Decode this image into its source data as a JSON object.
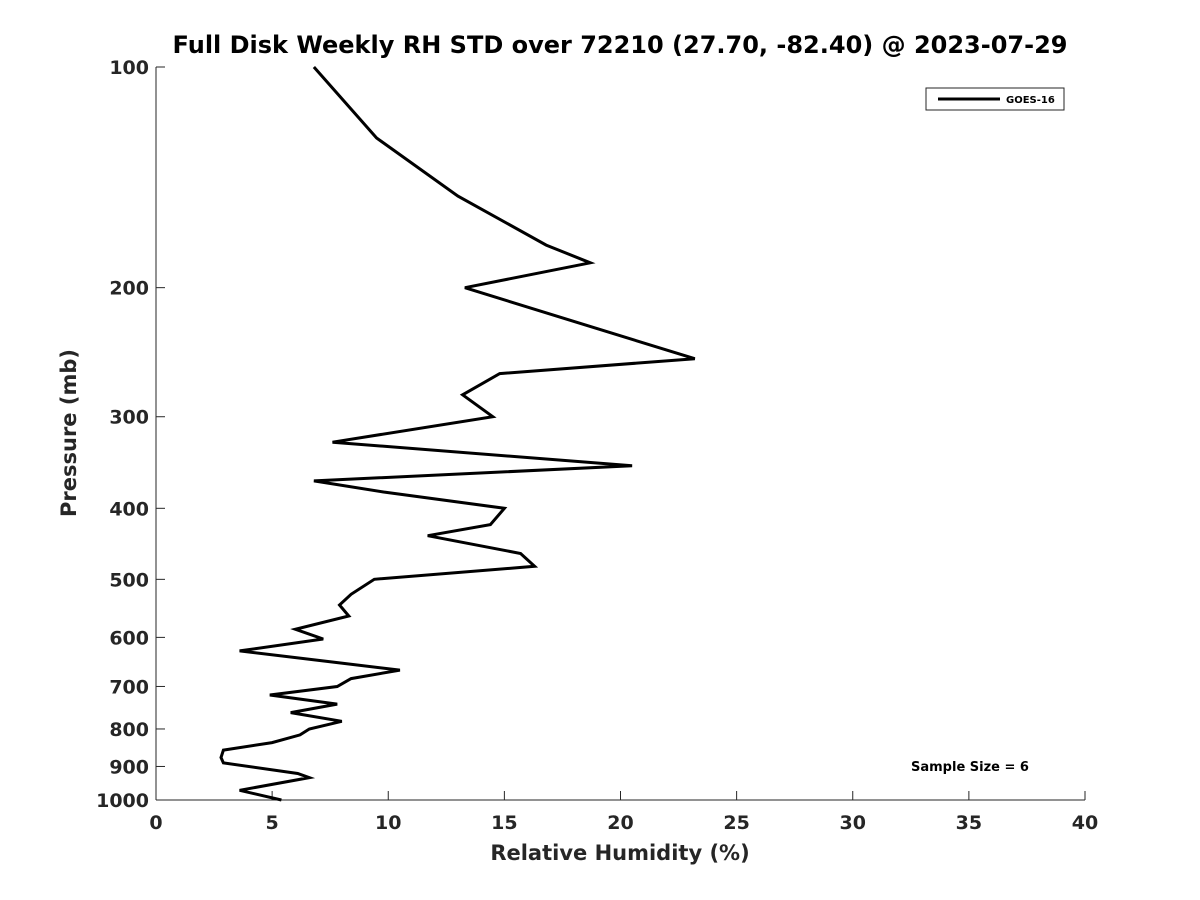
{
  "chart_data": {
    "type": "line",
    "title": "Full Disk Weekly RH STD over 72210 (27.70, -82.40) @ 2023-07-29",
    "xlabel": "Relative Humidity (%)",
    "ylabel": "Pressure (mb)",
    "xlim": [
      0,
      40
    ],
    "ylim": [
      1000,
      100
    ],
    "yscale": "log",
    "y_reversed": true,
    "grid": false,
    "legend_position": "top-right",
    "xticks": [
      0,
      5,
      10,
      15,
      20,
      25,
      30,
      35,
      40
    ],
    "xtick_labels": [
      "0",
      "5",
      "10",
      "15",
      "20",
      "25",
      "30",
      "35",
      "40"
    ],
    "yticks": [
      100,
      200,
      300,
      400,
      500,
      600,
      700,
      800,
      900,
      1000
    ],
    "ytick_labels": [
      "100",
      "200",
      "300",
      "400",
      "500",
      "600",
      "700",
      "800",
      "900",
      "1000"
    ],
    "series": [
      {
        "name": "GOES-16",
        "color": "#000000",
        "points": [
          [
            6.8,
            100
          ],
          [
            9.5,
            125
          ],
          [
            13.0,
            150
          ],
          [
            16.8,
            175
          ],
          [
            18.7,
            185
          ],
          [
            13.3,
            200
          ],
          [
            18.5,
            225
          ],
          [
            23.2,
            250
          ],
          [
            14.8,
            262
          ],
          [
            13.2,
            280
          ],
          [
            14.5,
            300
          ],
          [
            7.6,
            325
          ],
          [
            20.5,
            350
          ],
          [
            6.8,
            367
          ],
          [
            9.8,
            380
          ],
          [
            15.0,
            400
          ],
          [
            14.4,
            421
          ],
          [
            11.7,
            436
          ],
          [
            15.7,
            461
          ],
          [
            16.3,
            480
          ],
          [
            9.4,
            500
          ],
          [
            8.4,
            524
          ],
          [
            7.9,
            542
          ],
          [
            8.3,
            561
          ],
          [
            6.0,
            585
          ],
          [
            7.2,
            603
          ],
          [
            3.6,
            626
          ],
          [
            7.9,
            650
          ],
          [
            10.5,
            665
          ],
          [
            8.4,
            683
          ],
          [
            7.8,
            700
          ],
          [
            4.9,
            719
          ],
          [
            7.8,
            740
          ],
          [
            5.8,
            760
          ],
          [
            8.0,
            781
          ],
          [
            6.6,
            800
          ],
          [
            6.2,
            815
          ],
          [
            5.0,
            835
          ],
          [
            2.9,
            855
          ],
          [
            2.8,
            875
          ],
          [
            2.9,
            890
          ],
          [
            6.1,
            920
          ],
          [
            6.6,
            932
          ],
          [
            3.6,
            970
          ],
          [
            5.4,
            1000
          ]
        ]
      }
    ],
    "legend_entries": [
      "GOES-16"
    ],
    "annotations": [
      "Sample Size = 6"
    ]
  }
}
